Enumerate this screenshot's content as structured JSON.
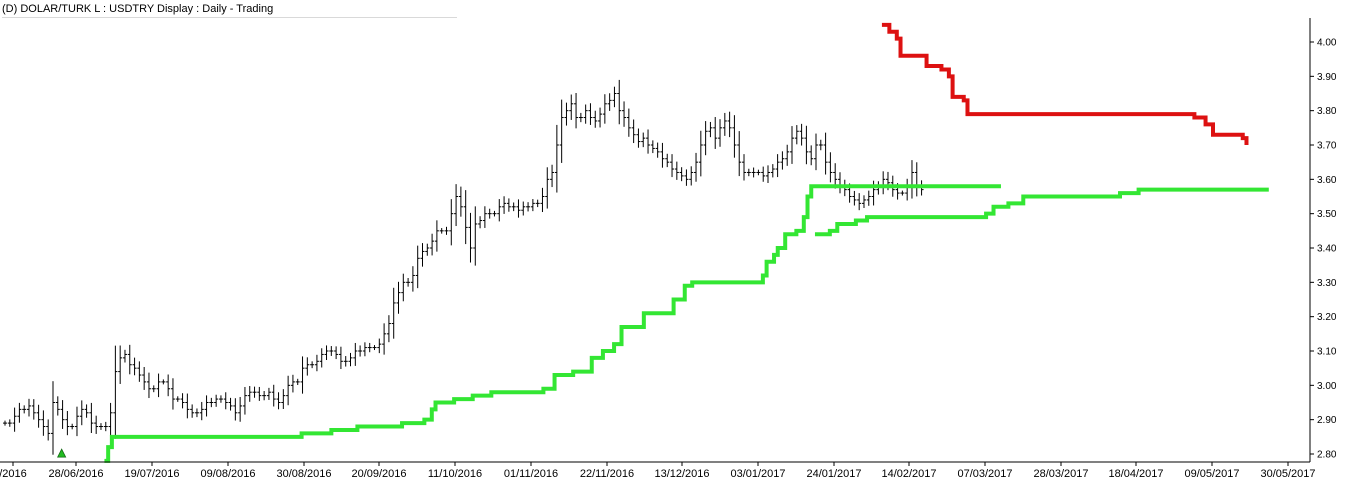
{
  "header": {
    "title": "(D) DOLAR/TURK L : USDTRY Display :  Daily  - Trading"
  },
  "chart_data": {
    "type": "line",
    "title": "(D) DOLAR/TURK L : USDTRY Display :  Daily  - Trading",
    "xlabel": "",
    "ylabel": "",
    "ylim": [
      2.78,
      4.06
    ],
    "y_ticks": [
      "4.00",
      "3.90",
      "3.80",
      "3.70",
      "3.60",
      "3.50",
      "3.40",
      "3.30",
      "3.20",
      "3.10",
      "3.00",
      "2.90",
      "2.80"
    ],
    "x_ticks": [
      "/2016",
      "28/06/2016",
      "19/07/2016",
      "09/08/2016",
      "30/08/2016",
      "20/09/2016",
      "11/10/2016",
      "01/11/2016",
      "22/11/2016",
      "13/12/2016",
      "03/01/2017",
      "24/01/2017",
      "14/02/2017",
      "07/03/2017",
      "28/03/2017",
      "18/04/2017",
      "09/05/2017",
      "30/05/2017"
    ],
    "grid": false,
    "legend": "none",
    "colors": {
      "price": "#000000",
      "support": "#33e633",
      "resistance": "#dd1111",
      "signal": "#22bb22",
      "axis": "#000000"
    },
    "signal_marker": {
      "date_index": 10,
      "value": 2.82,
      "shape": "triangle-up"
    },
    "series": [
      {
        "role": "price-bars",
        "values": [
          2.89,
          2.89,
          2.91,
          2.93,
          2.93,
          2.94,
          2.92,
          2.9,
          2.88,
          2.86,
          2.95,
          2.93,
          2.9,
          2.88,
          2.88,
          2.91,
          2.93,
          2.92,
          2.89,
          2.88,
          2.88,
          2.88,
          2.92,
          3.04,
          3.08,
          3.09,
          3.06,
          3.05,
          3.03,
          3.01,
          2.99,
          2.99,
          3.01,
          3.01,
          2.99,
          2.96,
          2.96,
          2.95,
          2.93,
          2.92,
          2.92,
          2.93,
          2.95,
          2.95,
          2.96,
          2.96,
          2.95,
          2.94,
          2.92,
          2.94,
          2.97,
          2.98,
          2.98,
          2.97,
          2.97,
          2.98,
          2.96,
          2.95,
          2.97,
          3.0,
          3.01,
          3.01,
          3.05,
          3.06,
          3.06,
          3.07,
          3.09,
          3.1,
          3.1,
          3.09,
          3.07,
          3.07,
          3.08,
          3.1,
          3.1,
          3.11,
          3.11,
          3.11,
          3.12,
          3.15,
          3.18,
          3.24,
          3.27,
          3.3,
          3.3,
          3.32,
          3.37,
          3.39,
          3.4,
          3.42,
          3.45,
          3.45,
          3.45,
          3.5,
          3.55,
          3.52,
          3.46,
          3.4,
          3.47,
          3.48,
          3.5,
          3.5,
          3.5,
          3.52,
          3.53,
          3.52,
          3.52,
          3.51,
          3.52,
          3.52,
          3.53,
          3.53,
          3.55,
          3.6,
          3.62,
          3.7,
          3.78,
          3.8,
          3.82,
          3.78,
          3.78,
          3.8,
          3.78,
          3.77,
          3.79,
          3.82,
          3.83,
          3.85,
          3.8,
          3.78,
          3.75,
          3.73,
          3.71,
          3.72,
          3.7,
          3.69,
          3.68,
          3.66,
          3.65,
          3.63,
          3.62,
          3.61,
          3.6,
          3.62,
          3.65,
          3.7,
          3.74,
          3.75,
          3.72,
          3.75,
          3.77,
          3.75,
          3.7,
          3.65,
          3.62,
          3.62,
          3.62,
          3.62,
          3.61,
          3.62,
          3.63,
          3.65,
          3.66,
          3.68,
          3.72,
          3.74,
          3.72,
          3.68,
          3.66,
          3.7,
          3.7,
          3.65,
          3.62,
          3.6,
          3.58,
          3.57,
          3.55,
          3.54,
          3.53,
          3.54,
          3.55,
          3.57,
          3.58,
          3.6,
          3.59,
          3.57,
          3.56,
          3.56,
          3.58,
          3.62,
          3.58,
          3.57
        ]
      },
      {
        "role": "support-stop-1",
        "points": [
          [
            27,
            2.78
          ],
          [
            28,
            2.82
          ],
          [
            29,
            2.85
          ],
          [
            76,
            2.85
          ],
          [
            80,
            2.86
          ],
          [
            88,
            2.87
          ],
          [
            95,
            2.88
          ],
          [
            107,
            2.89
          ],
          [
            113,
            2.9
          ],
          [
            115,
            2.93
          ],
          [
            116,
            2.95
          ],
          [
            121,
            2.96
          ],
          [
            126,
            2.97
          ],
          [
            131,
            2.98
          ],
          [
            145,
            2.99
          ],
          [
            148,
            3.03
          ],
          [
            153,
            3.04
          ],
          [
            158,
            3.08
          ],
          [
            161,
            3.1
          ],
          [
            164,
            3.12
          ],
          [
            166,
            3.17
          ],
          [
            172,
            3.21
          ],
          [
            180,
            3.25
          ],
          [
            183,
            3.29
          ],
          [
            185,
            3.3
          ],
          [
            202,
            3.3
          ],
          [
            204,
            3.32
          ],
          [
            205,
            3.36
          ],
          [
            207,
            3.38
          ],
          [
            208,
            3.4
          ],
          [
            210,
            3.44
          ],
          [
            213,
            3.45
          ],
          [
            215,
            3.49
          ],
          [
            216,
            3.55
          ],
          [
            217,
            3.58
          ],
          [
            268,
            3.58
          ]
        ]
      },
      {
        "role": "support-stop-2",
        "points": [
          [
            218,
            3.44
          ],
          [
            220,
            3.44
          ],
          [
            222,
            3.45
          ],
          [
            224,
            3.47
          ],
          [
            229,
            3.48
          ],
          [
            232,
            3.49
          ],
          [
            264,
            3.5
          ],
          [
            266,
            3.52
          ],
          [
            270,
            3.53
          ],
          [
            274,
            3.55
          ],
          [
            300,
            3.56
          ],
          [
            303,
            3.56
          ],
          [
            305,
            3.57
          ],
          [
            340,
            3.57
          ]
        ]
      },
      {
        "role": "resistance-stop",
        "points": [
          [
            236,
            4.05
          ],
          [
            238,
            4.03
          ],
          [
            240,
            4.01
          ],
          [
            241,
            3.96
          ],
          [
            247,
            3.96
          ],
          [
            248,
            3.93
          ],
          [
            252,
            3.92
          ],
          [
            254,
            3.9
          ],
          [
            255,
            3.84
          ],
          [
            258,
            3.83
          ],
          [
            259,
            3.79
          ],
          [
            264,
            3.79
          ],
          [
            318,
            3.79
          ],
          [
            320,
            3.78
          ],
          [
            323,
            3.76
          ],
          [
            325,
            3.73
          ],
          [
            333,
            3.72
          ],
          [
            334,
            3.7
          ]
        ]
      }
    ]
  }
}
